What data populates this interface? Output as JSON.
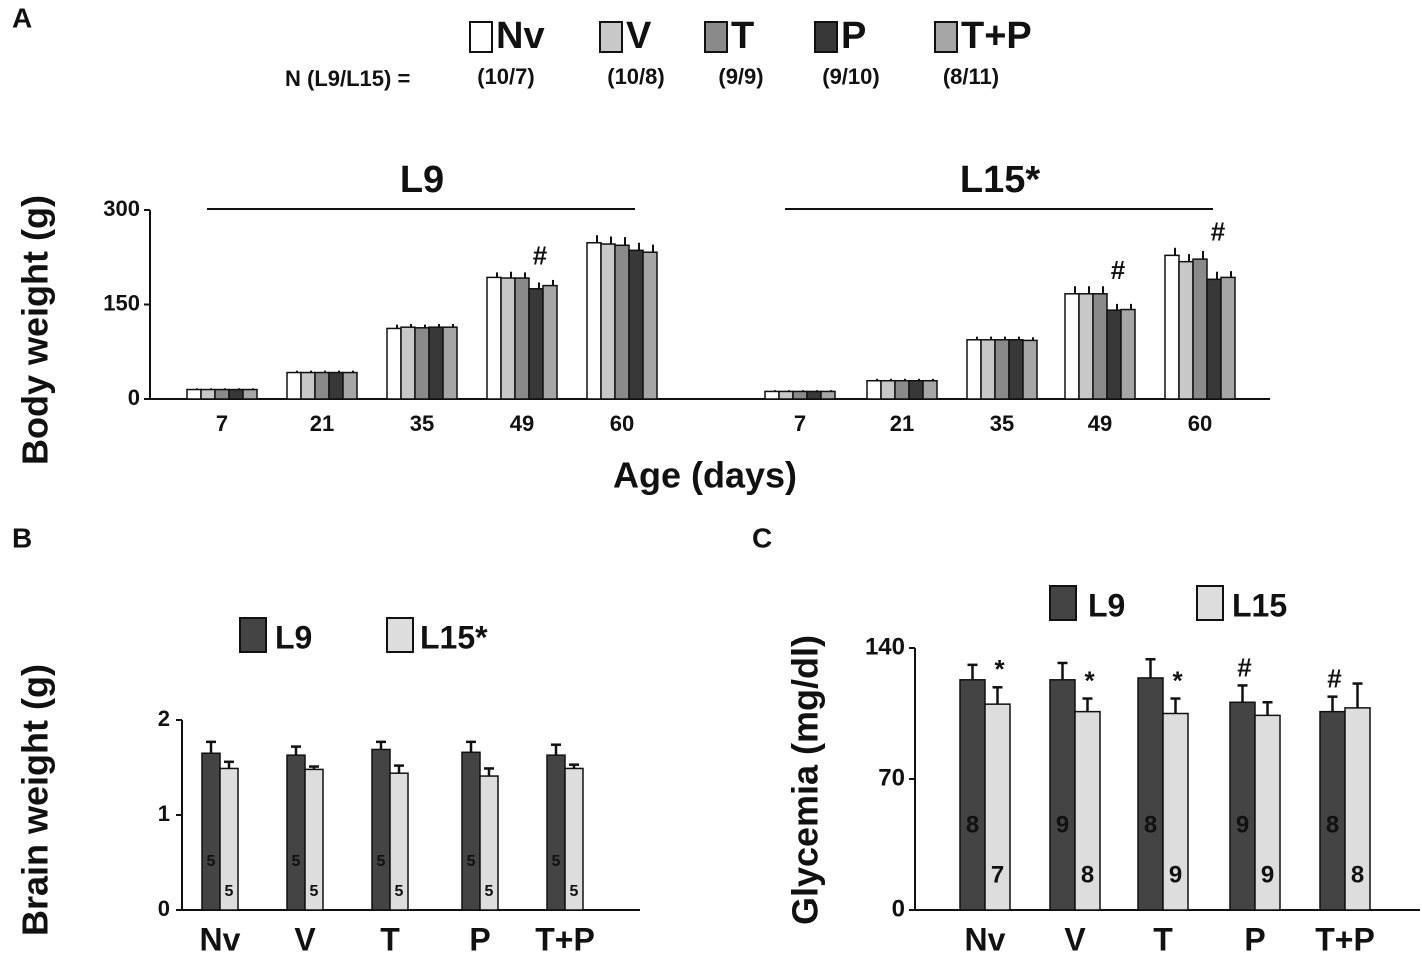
{
  "chart_data": [
    {
      "panel": "A",
      "type": "bar",
      "ylabel": "Body weight (g)",
      "xlabel": "Age (days)",
      "legend_label": "N (L9/L15) =",
      "categories": [
        "7",
        "21",
        "35",
        "49",
        "60"
      ],
      "ylim": [
        0,
        300
      ],
      "yticks": [
        0,
        150,
        300
      ],
      "series": [
        {
          "name": "Nv",
          "color": "#ffffff",
          "n": "(10/7)"
        },
        {
          "name": "V",
          "color": "#c8c8c8",
          "n": "(10/8)"
        },
        {
          "name": "T",
          "color": "#8a8a8a",
          "n": "(9/9)"
        },
        {
          "name": "P",
          "color": "#383838",
          "n": "(9/10)"
        },
        {
          "name": "T+P",
          "color": "#a6a6a6",
          "n": "(8/11)"
        }
      ],
      "groups": [
        {
          "name": "L9",
          "series": [
            {
              "values": [
                15,
                42,
                112,
                193,
                248
              ],
              "errors": [
                2,
                3,
                6,
                8,
                12
              ]
            },
            {
              "values": [
                15,
                42,
                114,
                192,
                246
              ],
              "errors": [
                2,
                3,
                5,
                10,
                12
              ]
            },
            {
              "values": [
                15,
                42,
                113,
                192,
                244
              ],
              "errors": [
                2,
                3,
                5,
                9,
                13
              ]
            },
            {
              "values": [
                15,
                42,
                114,
                175,
                236
              ],
              "errors": [
                2,
                3,
                5,
                10,
                12
              ]
            },
            {
              "values": [
                15,
                42,
                114,
                180,
                233
              ],
              "errors": [
                2,
                3,
                5,
                9,
                12
              ]
            }
          ]
        },
        {
          "name": "L15*",
          "series": [
            {
              "values": [
                12,
                29,
                94,
                167,
                228
              ],
              "errors": [
                2,
                3,
                5,
                12,
                12
              ]
            },
            {
              "values": [
                12,
                29,
                94,
                167,
                218
              ],
              "errors": [
                2,
                3,
                5,
                12,
                12
              ]
            },
            {
              "values": [
                12,
                29,
                94,
                167,
                222
              ],
              "errors": [
                2,
                3,
                5,
                12,
                13
              ]
            },
            {
              "values": [
                12,
                29,
                94,
                141,
                190
              ],
              "errors": [
                2,
                3,
                5,
                10,
                12
              ]
            },
            {
              "values": [
                12,
                29,
                93,
                142,
                193
              ],
              "errors": [
                2,
                3,
                5,
                9,
                10
              ]
            }
          ]
        }
      ],
      "annotations": [
        {
          "text": "#",
          "group": 0,
          "category": 3
        },
        {
          "text": "#",
          "group": 1,
          "category": 3
        },
        {
          "text": "#",
          "group": 1,
          "category": 4
        }
      ]
    },
    {
      "panel": "B",
      "type": "bar",
      "ylabel": "Brain weight (g)",
      "categories": [
        "Nv",
        "V",
        "T",
        "P",
        "T+P"
      ],
      "ylim": [
        0,
        2
      ],
      "yticks": [
        0,
        1,
        2
      ],
      "series": [
        {
          "name": "L9",
          "color": "#444444",
          "values": [
            1.65,
            1.63,
            1.69,
            1.66,
            1.63
          ],
          "errors": [
            0.12,
            0.09,
            0.08,
            0.11,
            0.11
          ],
          "n": [
            5,
            5,
            5,
            5,
            5
          ]
        },
        {
          "name": "L15*",
          "color": "#dddddd",
          "values": [
            1.49,
            1.48,
            1.44,
            1.41,
            1.49
          ],
          "errors": [
            0.07,
            0.03,
            0.08,
            0.08,
            0.04
          ],
          "n": [
            5,
            5,
            5,
            5,
            5
          ]
        }
      ]
    },
    {
      "panel": "C",
      "type": "bar",
      "ylabel": "Glycemia (mg/dl)",
      "categories": [
        "Nv",
        "V",
        "T",
        "P",
        "T+P"
      ],
      "ylim": [
        0,
        140
      ],
      "yticks": [
        0,
        70,
        140
      ],
      "series": [
        {
          "name": "L9",
          "color": "#444444",
          "values": [
            123,
            123,
            124,
            111,
            106
          ],
          "errors": [
            8,
            9,
            10,
            9,
            8
          ],
          "n": [
            8,
            9,
            8,
            9,
            8
          ],
          "annotations": [
            null,
            null,
            null,
            "#",
            "#"
          ]
        },
        {
          "name": "L15",
          "color": "#dddddd",
          "values": [
            110,
            106,
            105,
            104,
            108
          ],
          "errors": [
            9,
            7,
            8,
            7,
            13
          ],
          "n": [
            7,
            8,
            9,
            9,
            8
          ],
          "annotations": [
            "*",
            "*",
            "*",
            null,
            null
          ]
        }
      ]
    }
  ]
}
